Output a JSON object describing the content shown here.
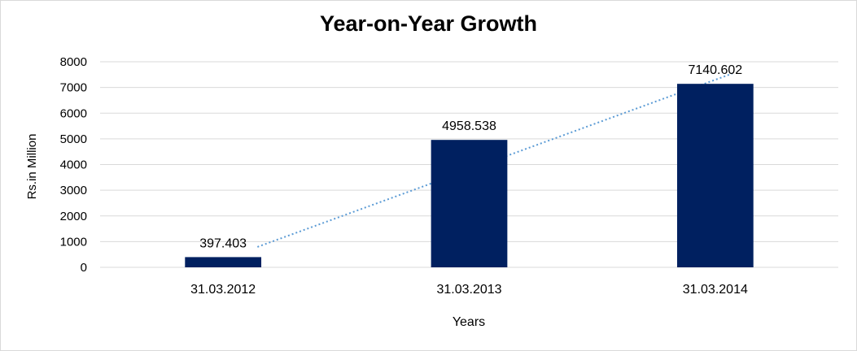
{
  "chart_data": {
    "type": "bar",
    "title": "Year-on-Year Growth",
    "xlabel": "Years",
    "ylabel": "Rs.in Million",
    "categories": [
      "31.03.2012",
      "31.03.2013",
      "31.03.2014"
    ],
    "values": [
      397.403,
      4958.538,
      7140.602
    ],
    "data_labels": [
      "397.403",
      "4958.538",
      "7140.602"
    ],
    "yticks": [
      "0",
      "1000",
      "2000",
      "3000",
      "4000",
      "5000",
      "6000",
      "7000",
      "8000"
    ],
    "ylim": [
      0,
      8000
    ],
    "grid": true,
    "legend": "none",
    "trendline": "linear",
    "colors": {
      "bar": "#002060",
      "trendline": "#5b9bd5",
      "grid": "#d9d9d9"
    }
  }
}
